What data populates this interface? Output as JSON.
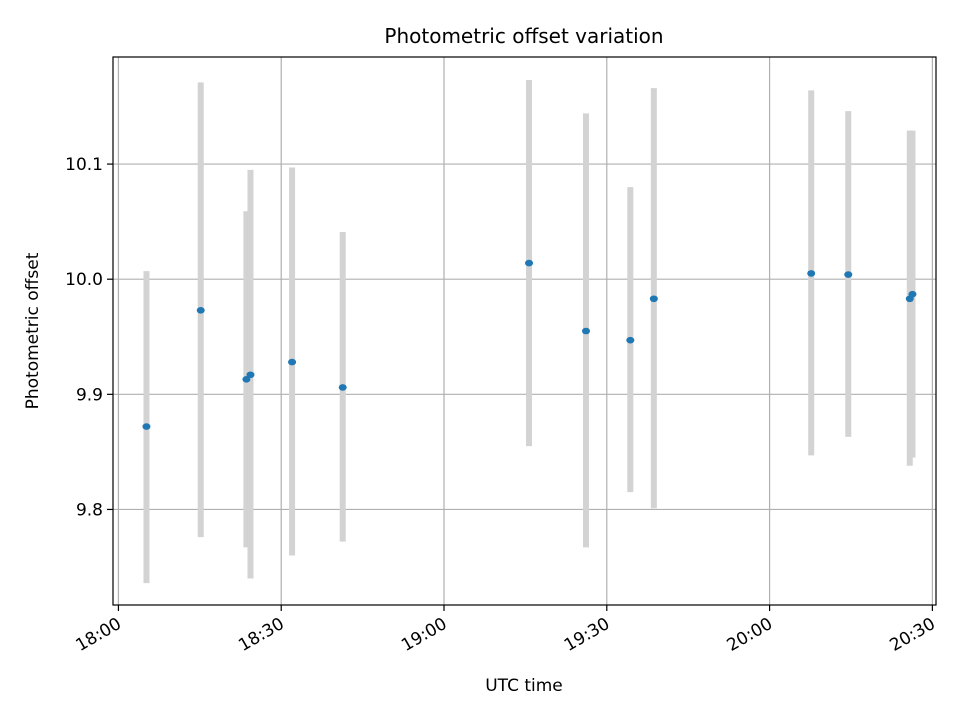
{
  "chart_data": {
    "type": "scatter",
    "title": "Photometric offset variation",
    "xlabel": "UTC time",
    "ylabel": "Photometric offset",
    "xlim": [
      "17:59",
      "20:30:40"
    ],
    "ylim": [
      9.717,
      10.193
    ],
    "grid": true,
    "x_ticks": [
      "18:00",
      "18:30",
      "19:00",
      "19:30",
      "20:00",
      "20:30"
    ],
    "y_ticks": [
      "9.8",
      "9.9",
      "10.0",
      "10.1"
    ],
    "marker_color": "#1f77b4",
    "errorbar_color": "#d3d3d3",
    "points": [
      {
        "time": "18:05:10",
        "y": 9.872,
        "low": 9.736,
        "high": 10.007
      },
      {
        "time": "18:15:10",
        "y": 9.973,
        "low": 9.776,
        "high": 10.171
      },
      {
        "time": "18:23:35",
        "y": 9.913,
        "low": 9.767,
        "high": 10.059
      },
      {
        "time": "18:24:20",
        "y": 9.917,
        "low": 9.74,
        "high": 10.095
      },
      {
        "time": "18:32:00",
        "y": 9.928,
        "low": 9.76,
        "high": 10.097
      },
      {
        "time": "18:41:20",
        "y": 9.906,
        "low": 9.772,
        "high": 10.041
      },
      {
        "time": "19:15:40",
        "y": 10.014,
        "low": 9.855,
        "high": 10.173
      },
      {
        "time": "19:26:10",
        "y": 9.955,
        "low": 9.767,
        "high": 10.144
      },
      {
        "time": "19:34:20",
        "y": 9.947,
        "low": 9.815,
        "high": 10.08
      },
      {
        "time": "19:38:40",
        "y": 9.983,
        "low": 9.801,
        "high": 10.166
      },
      {
        "time": "20:07:40",
        "y": 10.005,
        "low": 9.847,
        "high": 10.164
      },
      {
        "time": "20:14:30",
        "y": 10.004,
        "low": 9.863,
        "high": 10.146
      },
      {
        "time": "20:25:50",
        "y": 9.983,
        "low": 9.838,
        "high": 10.129
      },
      {
        "time": "20:26:20",
        "y": 9.987,
        "low": 9.845,
        "high": 10.129
      }
    ]
  }
}
